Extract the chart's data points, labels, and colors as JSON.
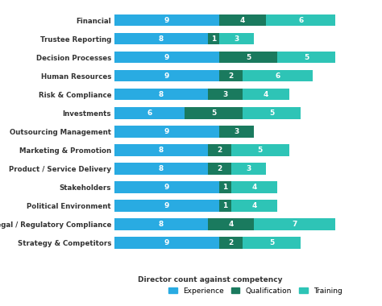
{
  "categories": [
    "Strategy & Competitors",
    "Legal / Regulatory Compliance",
    "Political Environment",
    "Stakeholders",
    "Product / Service Delivery",
    "Marketing & Promotion",
    "Outsourcing Management",
    "Investments",
    "Risk & Compliance",
    "Human Resources",
    "Decision Processes",
    "Trustee Reporting",
    "Financial"
  ],
  "experience": [
    9,
    8,
    9,
    9,
    8,
    8,
    9,
    6,
    8,
    9,
    9,
    8,
    9
  ],
  "qualification": [
    2,
    4,
    1,
    1,
    2,
    2,
    3,
    5,
    3,
    2,
    5,
    1,
    4
  ],
  "training": [
    5,
    7,
    4,
    4,
    3,
    5,
    0,
    5,
    4,
    6,
    5,
    3,
    6
  ],
  "color_experience": "#29ABE2",
  "color_qualification": "#1A7A5E",
  "color_training": "#2EC4B6",
  "background_color": "#FFFFFF",
  "title": "Director count against competency",
  "legend_labels": [
    "Experience",
    "Qualification",
    "Training"
  ],
  "bar_height": 0.62,
  "xlim": 22
}
